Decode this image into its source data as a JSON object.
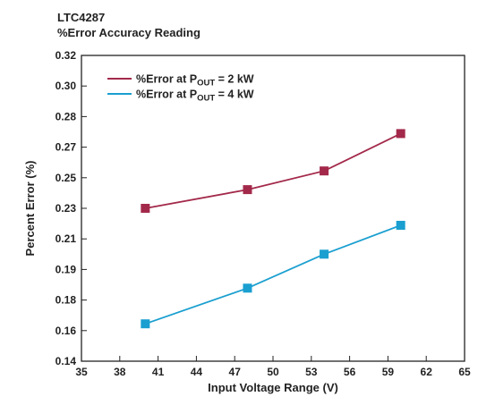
{
  "chart_data": {
    "type": "line",
    "title": "LTC4287",
    "subtitle": "%Error Accuracy Reading",
    "xlabel": "Input Voltage Range (V)",
    "ylabel": "Percent Error (%)",
    "xlim": [
      35,
      65
    ],
    "ylim": [
      0.14,
      0.32
    ],
    "xticks": [
      35,
      38,
      41,
      44,
      47,
      50,
      53,
      56,
      59,
      62,
      65
    ],
    "yticks": [
      "0.14",
      "0.16",
      "0.18",
      "0.19",
      "0.21",
      "0.23",
      "0.25",
      "0.27",
      "0.28",
      "0.30",
      "0.32"
    ],
    "grid": false,
    "legend_position": "top-left",
    "series": [
      {
        "name_pre": "%Error at P",
        "name_sub": "OUT",
        "name_post": " = 2 kW",
        "color": "#a3294a",
        "marker": "square",
        "x": [
          40,
          48,
          54,
          60
        ],
        "y": [
          0.23,
          0.241,
          0.252,
          0.274
        ]
      },
      {
        "name_pre": "%Error at P",
        "name_sub": "OUT",
        "name_post": " = 4 kW",
        "color": "#1a9fd0",
        "marker": "square",
        "x": [
          40,
          48,
          54,
          60
        ],
        "y": [
          0.162,
          0.183,
          0.203,
          0.22
        ]
      }
    ]
  }
}
